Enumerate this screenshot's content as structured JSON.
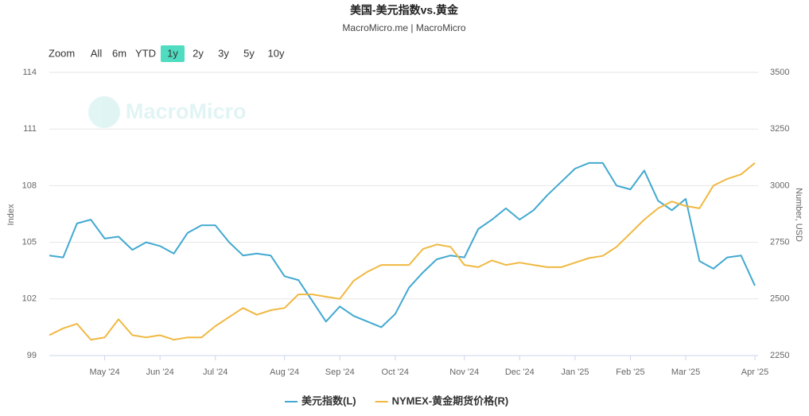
{
  "chart_data": {
    "type": "line",
    "title": "美国-美元指数vs.黄金",
    "subtitle": "MacroMicro.me | MacroMicro",
    "watermark": "MacroMicro",
    "range_selector": {
      "label": "Zoom",
      "buttons": [
        "All",
        "6m",
        "YTD",
        "1y",
        "2y",
        "3y",
        "5y",
        "10y"
      ],
      "selected": 3
    },
    "ylabel": "Index",
    "y2label": "Number, USD",
    "categories": [
      null,
      null,
      null,
      null,
      "May '24",
      null,
      null,
      null,
      "Jun '24",
      null,
      null,
      null,
      "Jul '24",
      null,
      null,
      null,
      null,
      "Aug '24",
      null,
      null,
      null,
      "Sep '24",
      null,
      null,
      null,
      "Oct '24",
      null,
      null,
      null,
      null,
      "Nov '24",
      null,
      null,
      null,
      "Dec '24",
      null,
      null,
      null,
      "Jan '25",
      null,
      null,
      null,
      "Feb '25",
      null,
      null,
      null,
      "Mar '25",
      null,
      null,
      null,
      null,
      "Apr '25"
    ],
    "series": [
      {
        "name": "美元指数(L)",
        "color": "#42a9d0",
        "axis": "y",
        "values": [
          104.3,
          104.2,
          106.0,
          106.2,
          105.2,
          105.3,
          104.6,
          105.0,
          104.8,
          104.4,
          105.5,
          105.9,
          105.9,
          105.0,
          104.3,
          104.4,
          104.3,
          103.2,
          103.0,
          101.9,
          100.8,
          101.6,
          101.1,
          100.8,
          100.5,
          101.2,
          102.6,
          103.4,
          104.1,
          104.3,
          104.2,
          105.7,
          106.2,
          106.8,
          106.2,
          106.7,
          107.5,
          108.2,
          108.9,
          109.2,
          109.2,
          108.0,
          107.8,
          108.8,
          107.2,
          106.7,
          107.3,
          104.0,
          103.6,
          104.2,
          104.3,
          102.7
        ]
      },
      {
        "name": "NYMEX-黄金期货价格(R)",
        "color": "#f0b840",
        "axis": "y2",
        "values": [
          2340,
          2370,
          2390,
          2320,
          2330,
          2410,
          2340,
          2330,
          2340,
          2320,
          2330,
          2330,
          2380,
          2420,
          2460,
          2430,
          2450,
          2460,
          2520,
          2520,
          2510,
          2500,
          2580,
          2620,
          2650,
          2650,
          2650,
          2720,
          2740,
          2730,
          2650,
          2640,
          2670,
          2650,
          2660,
          2650,
          2640,
          2640,
          2660,
          2680,
          2690,
          2730,
          2790,
          2850,
          2900,
          2930,
          2910,
          2900,
          3000,
          3030,
          3050,
          3100
        ]
      }
    ],
    "ylim": [
      99,
      114
    ],
    "yticks": [
      99,
      102,
      105,
      108,
      111,
      114
    ],
    "y2lim": [
      2250,
      3500
    ],
    "y2ticks": [
      2250,
      2500,
      2750,
      3000,
      3250,
      3500
    ],
    "grid": true
  }
}
